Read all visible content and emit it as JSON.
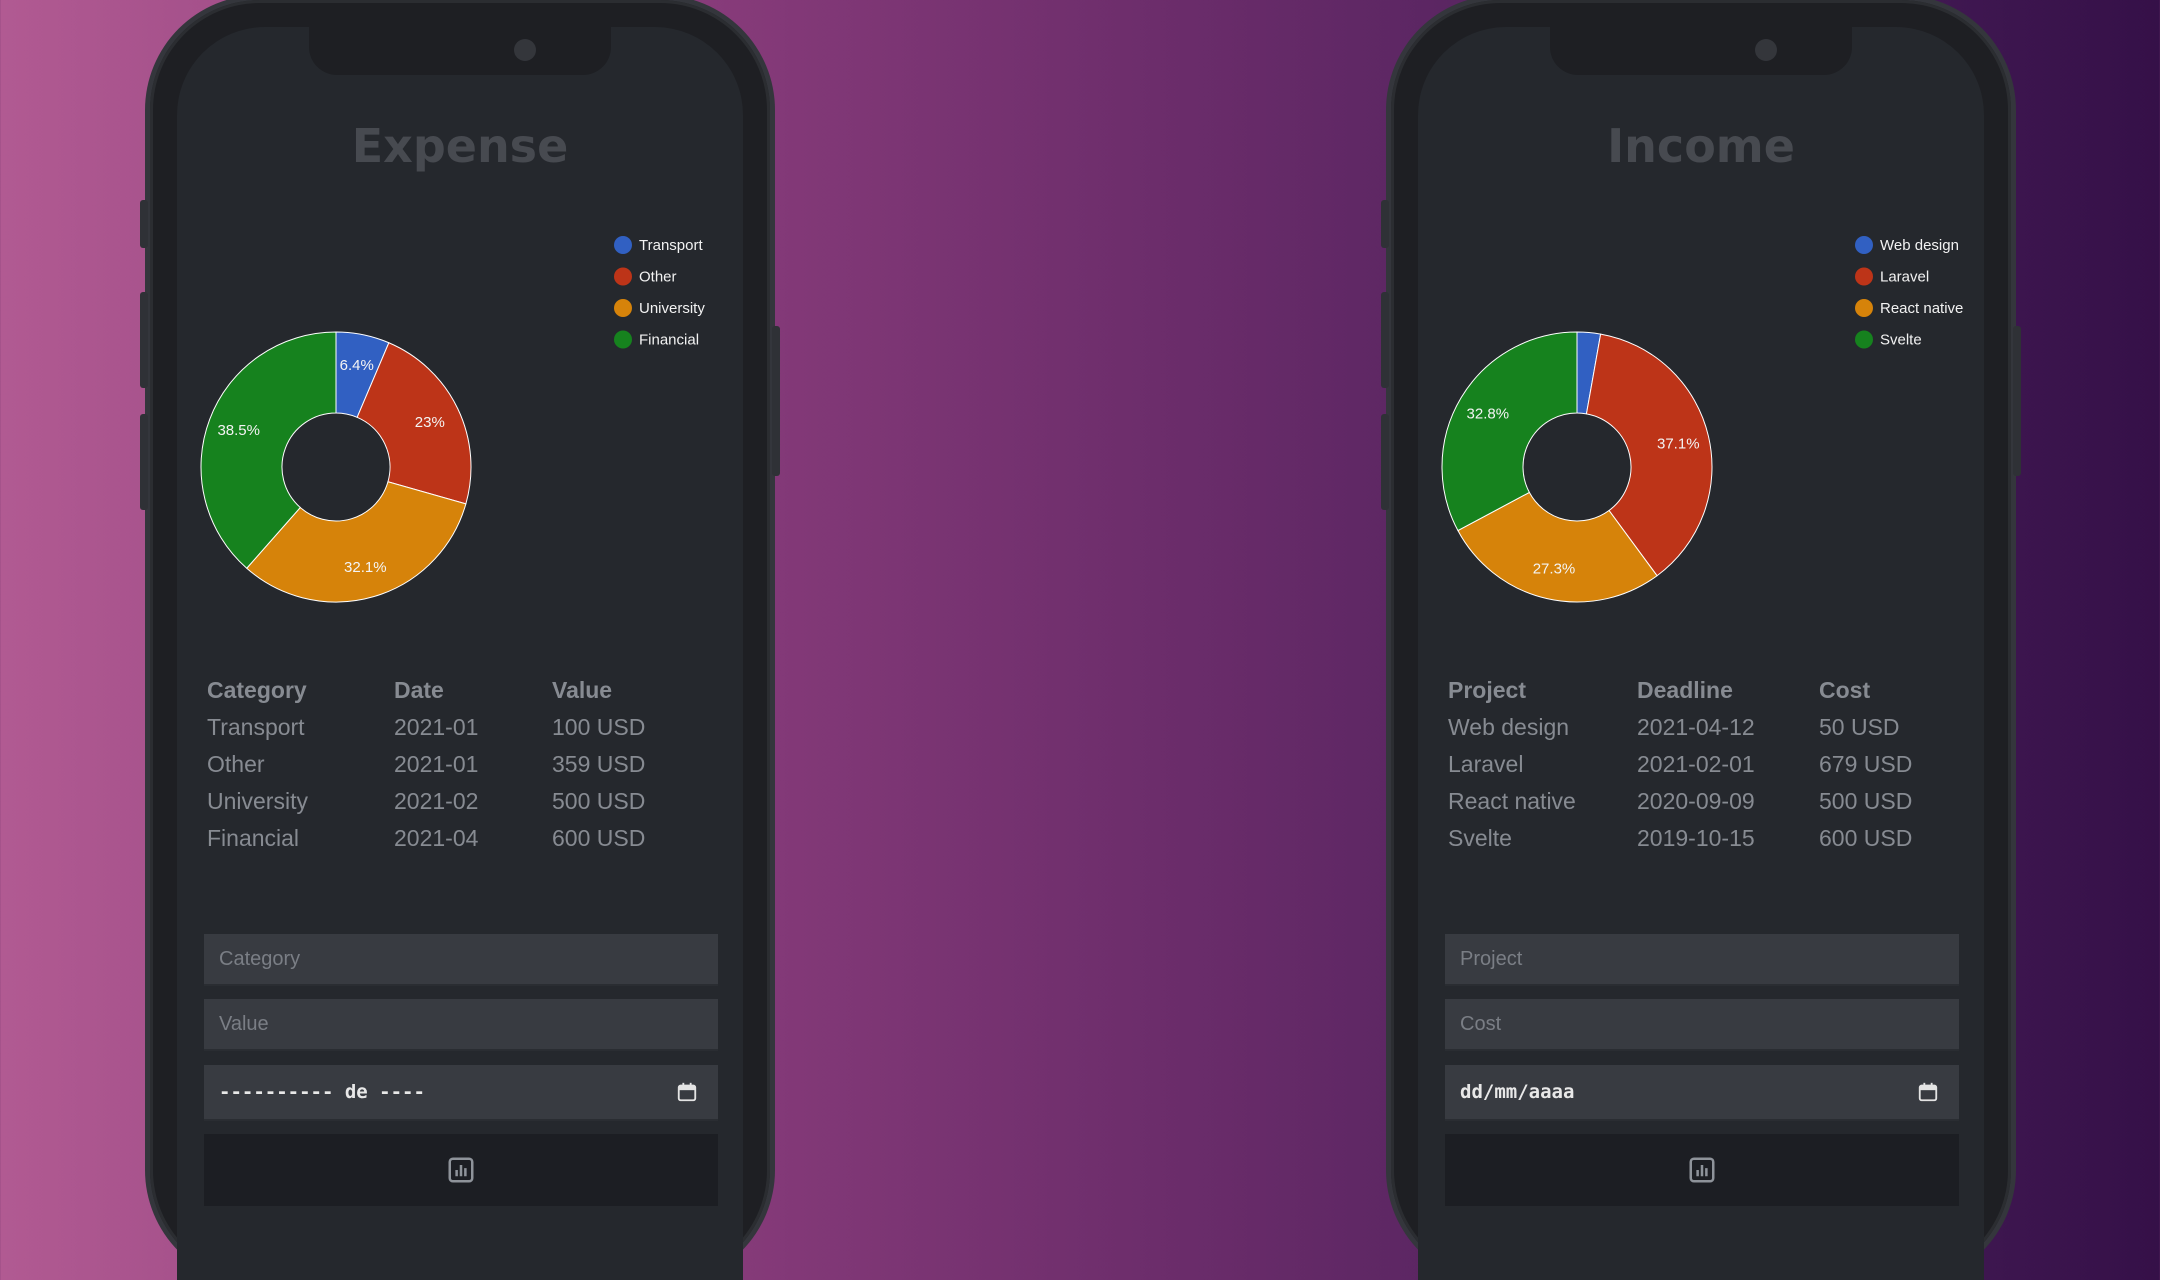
{
  "colors": {
    "slice1": "#3160c2",
    "slice2": "#bd3418",
    "slice3": "#d6830a",
    "slice4": "#16821e"
  },
  "expense": {
    "title": "Expense",
    "chart_data": {
      "type": "pie",
      "donut": true,
      "categories": [
        "Transport",
        "Other",
        "University",
        "Financial"
      ],
      "values": [
        6.4,
        23,
        32.1,
        38.5
      ],
      "labels": [
        "6.4%",
        "23%",
        "32.1%",
        "38.5%"
      ],
      "legend": "top-right"
    },
    "table": {
      "headers": [
        "Category",
        "Date",
        "Value"
      ],
      "rows": [
        [
          "Transport",
          "2021-01",
          "100 USD"
        ],
        [
          "Other",
          "2021-01",
          "359 USD"
        ],
        [
          "University",
          "2021-02",
          "500 USD"
        ],
        [
          "Financial",
          "2021-04",
          "600 USD"
        ]
      ]
    },
    "form": {
      "field1_placeholder": "Category",
      "field2_placeholder": "Value",
      "date_value": "---------- de ----",
      "calendar_icon": "calendar-icon",
      "submit_icon": "chart-icon"
    }
  },
  "income": {
    "title": "Income",
    "chart_data": {
      "type": "pie",
      "donut": true,
      "categories": [
        "Web design",
        "Laravel",
        "React native",
        "Svelte"
      ],
      "values": [
        2.8,
        37.1,
        27.3,
        32.8
      ],
      "labels": [
        "",
        "37.1%",
        "27.3%",
        "32.8%"
      ],
      "legend": "top-right"
    },
    "table": {
      "headers": [
        "Project",
        "Deadline",
        "Cost"
      ],
      "rows": [
        [
          "Web design",
          "2021-04-12",
          "50 USD"
        ],
        [
          "Laravel",
          "2021-02-01",
          "679 USD"
        ],
        [
          "React native",
          "2020-09-09",
          "500 USD"
        ],
        [
          "Svelte",
          "2019-10-15",
          "600 USD"
        ]
      ]
    },
    "form": {
      "field1_placeholder": "Project",
      "field2_placeholder": "Cost",
      "date_value": "dd/mm/aaaa",
      "calendar_icon": "calendar-icon",
      "submit_icon": "chart-icon"
    }
  }
}
